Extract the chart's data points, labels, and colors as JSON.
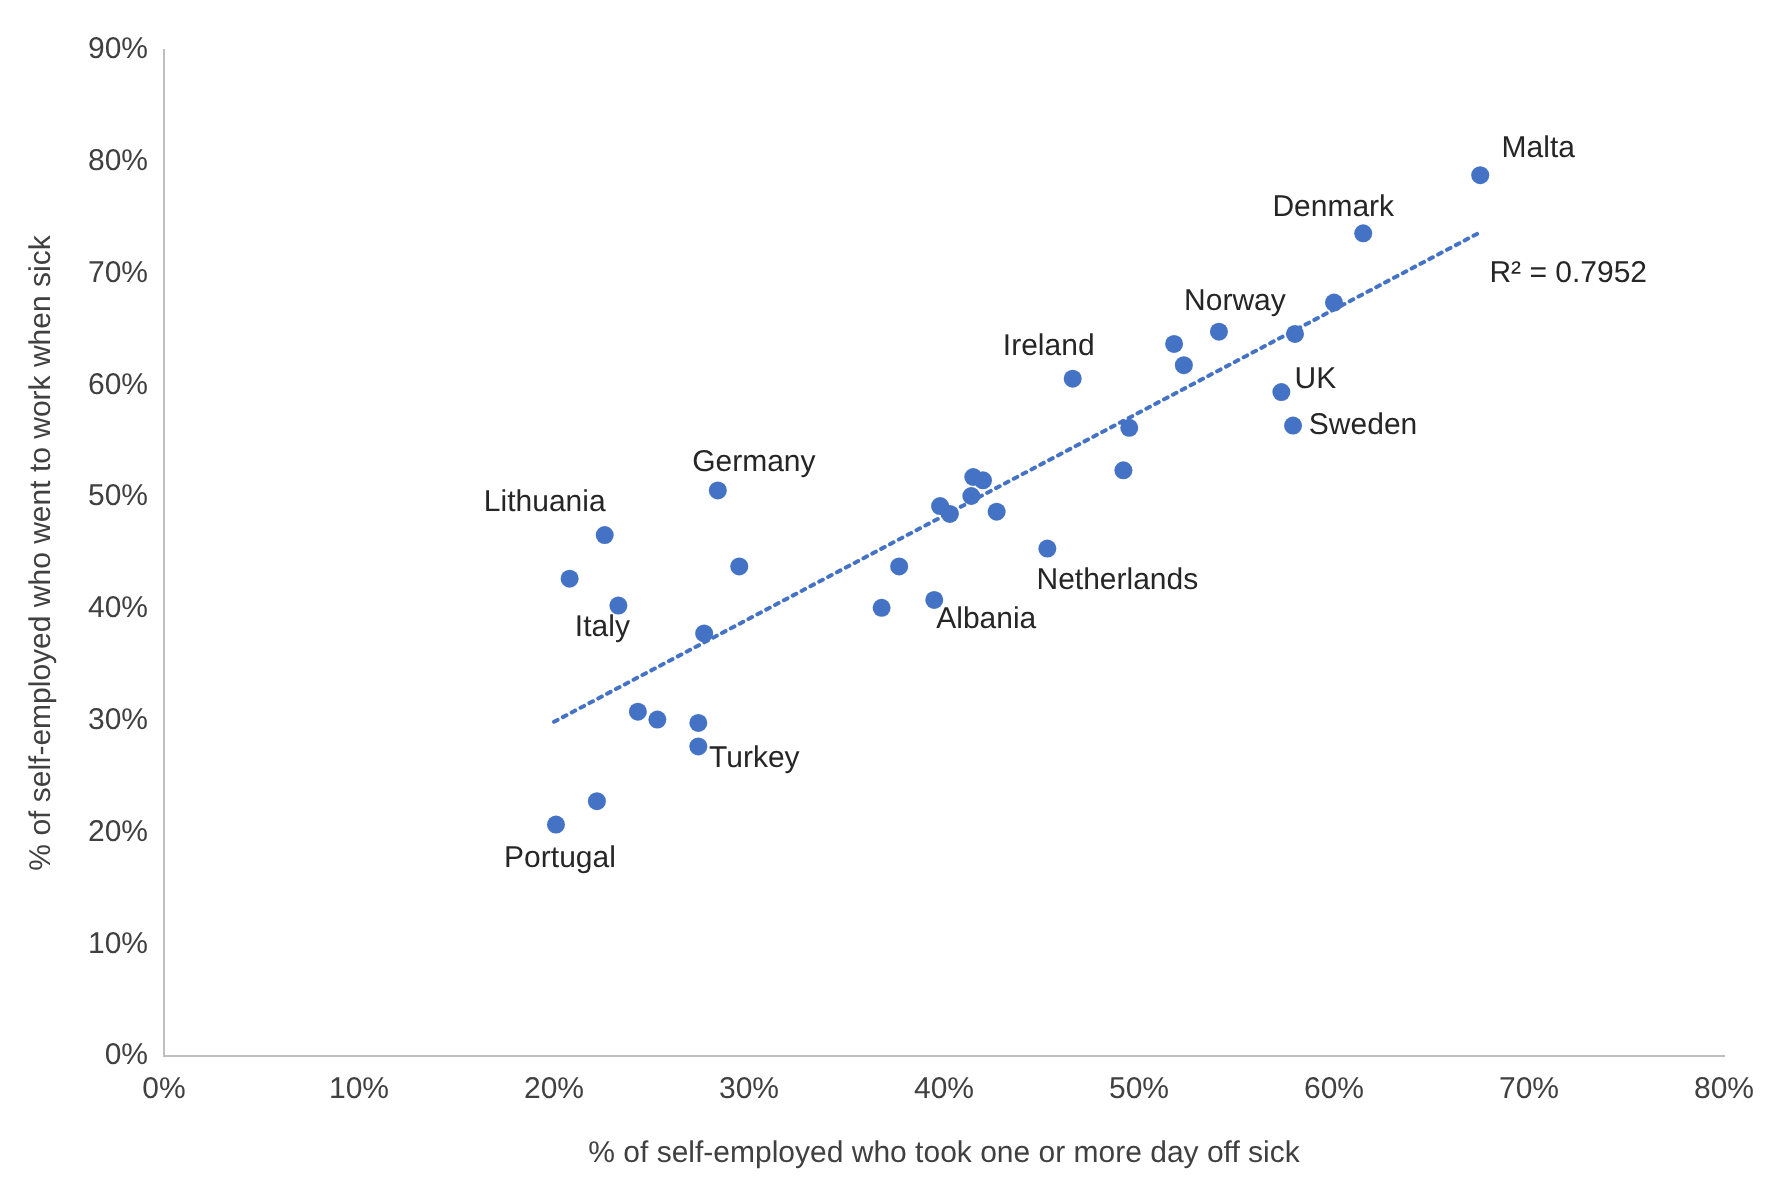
{
  "chart_data": {
    "type": "scatter",
    "xlabel": "% of self-employed who took one or more day off sick",
    "ylabel": "% of self-employed who went to work when sick",
    "xlim": [
      0,
      80
    ],
    "xticks": [
      {
        "value": 0,
        "label": "0%"
      },
      {
        "value": 10,
        "label": "10%"
      },
      {
        "value": 20,
        "label": "20%"
      },
      {
        "value": 30,
        "label": "30%"
      },
      {
        "value": 40,
        "label": "40%"
      },
      {
        "value": 50,
        "label": "50%"
      },
      {
        "value": 60,
        "label": "60%"
      },
      {
        "value": 70,
        "label": "70%"
      },
      {
        "value": 80,
        "label": "80%"
      }
    ],
    "ylim": [
      0,
      90
    ],
    "yticks": [
      {
        "value": 0,
        "label": "0%"
      },
      {
        "value": 10,
        "label": "10%"
      },
      {
        "value": 20,
        "label": "20%"
      },
      {
        "value": 30,
        "label": "30%"
      },
      {
        "value": 40,
        "label": "40%"
      },
      {
        "value": 50,
        "label": "50%"
      },
      {
        "value": 60,
        "label": "60%"
      },
      {
        "value": 70,
        "label": "70%"
      },
      {
        "value": 80,
        "label": "80%"
      },
      {
        "value": 90,
        "label": "90%"
      }
    ],
    "grid": false,
    "legend": false,
    "marker": "circle",
    "series": [
      {
        "type": "scatter",
        "color": "#4472c4",
        "x": [
          67.5,
          61.5,
          60.0,
          58.0,
          54.1,
          51.8,
          52.3,
          57.3,
          57.9,
          46.6,
          49.5,
          49.2,
          41.5,
          42.0,
          41.4,
          39.8,
          40.3,
          42.7,
          45.3,
          37.7,
          39.5,
          36.8,
          28.4,
          22.6,
          20.8,
          23.3,
          29.5,
          27.7,
          24.3,
          25.3,
          27.4,
          27.4,
          22.2,
          20.1
        ],
        "values": [
          78.8,
          73.6,
          67.4,
          64.6,
          64.8,
          63.7,
          61.8,
          59.4,
          56.4,
          60.6,
          56.2,
          52.4,
          51.8,
          51.5,
          50.1,
          49.2,
          48.5,
          48.7,
          45.4,
          43.8,
          40.8,
          40.1,
          50.6,
          46.6,
          42.7,
          40.3,
          43.8,
          37.8,
          30.8,
          30.1,
          29.8,
          27.7,
          22.8,
          20.7
        ]
      },
      {
        "type": "line",
        "color": "#4472c4",
        "line_style": "dotted",
        "marker": "none",
        "x": [
          20.0,
          67.5
        ],
        "values": [
          29.9,
          73.7
        ]
      }
    ],
    "annotations": [
      {
        "text": "Malta",
        "x": 67.5,
        "y": 78.8
      },
      {
        "text": "Denmark",
        "x": 61.5,
        "y": 73.6
      },
      {
        "text": "Norway",
        "x": 54.1,
        "y": 64.8
      },
      {
        "text": "UK",
        "x": 57.3,
        "y": 59.4
      },
      {
        "text": "Sweden",
        "x": 57.9,
        "y": 56.4
      },
      {
        "text": "Ireland",
        "x": 46.6,
        "y": 60.6
      },
      {
        "text": "Netherlands",
        "x": 45.3,
        "y": 45.4
      },
      {
        "text": "Albania",
        "x": 39.5,
        "y": 40.8
      },
      {
        "text": "Germany",
        "x": 28.4,
        "y": 50.6
      },
      {
        "text": "Lithuania",
        "x": 22.6,
        "y": 46.6
      },
      {
        "text": "Italy",
        "x": 23.3,
        "y": 40.3
      },
      {
        "text": "Turkey",
        "x": 27.4,
        "y": 27.7
      },
      {
        "text": "Portugal",
        "x": 20.1,
        "y": 20.7
      },
      {
        "text": "R² = 0.7952",
        "x": 67.5,
        "y": 73.7
      }
    ]
  }
}
